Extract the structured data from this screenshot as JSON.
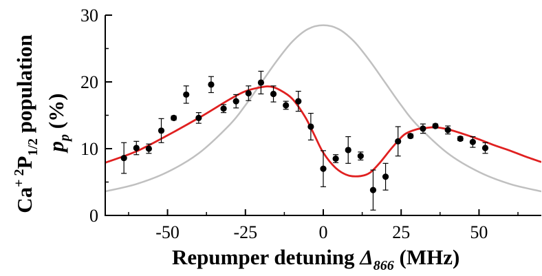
{
  "chart_data": {
    "type": "scatter",
    "xlabel": {
      "main": "Repumper detuning ",
      "symbol": "Δ",
      "subscript": "866",
      "unit": " (MHz)"
    },
    "ylabel": {
      "line1_prefix": "Ca",
      "line1_sup_plus": "+",
      "line1_sup_2": "2",
      "line1_main": "P",
      "line1_sub": "1/2",
      "line1_suffix": " population",
      "line2_symbol": "p",
      "line2_sub": "p",
      "line2_unit": " (%)"
    },
    "xlim": [
      -70,
      70
    ],
    "ylim": [
      0,
      30
    ],
    "xticks": [
      -50,
      -25,
      0,
      25,
      50
    ],
    "yticks": [
      0,
      10,
      20,
      30
    ],
    "tick_labels_x": [
      "-50",
      "-25",
      "0",
      "25",
      "50"
    ],
    "tick_labels_y": [
      "0",
      "10",
      "20",
      "30"
    ],
    "grid": false,
    "legend": "none",
    "series": [
      {
        "kind": "points",
        "color": "#000000",
        "x": [
          -64,
          -60,
          -56,
          -52,
          -48,
          -44,
          -40,
          -36,
          -32,
          -28,
          -24,
          -20,
          -16,
          -12,
          -8,
          -4,
          0,
          4,
          8,
          12,
          16,
          20,
          24,
          28,
          32,
          36,
          40,
          44,
          48,
          52
        ],
        "y": [
          8.6,
          10.1,
          10.0,
          12.7,
          14.6,
          18.1,
          14.6,
          19.6,
          16.0,
          17.1,
          18.3,
          19.9,
          18.2,
          16.5,
          17.1,
          13.3,
          7.0,
          8.5,
          9.8,
          8.9,
          3.8,
          5.8,
          11.1,
          11.9,
          13.0,
          13.4,
          12.8,
          11.5,
          11.0,
          10.1
        ],
        "yerr_low": [
          2.3,
          1.0,
          0.7,
          1.8,
          0.3,
          1.3,
          0.8,
          1.2,
          0.6,
          1.0,
          1.1,
          1.7,
          1.2,
          0.6,
          1.5,
          2.0,
          2.7,
          0.6,
          2.0,
          0.6,
          3.0,
          2.0,
          2.2,
          0.3,
          0.7,
          0.3,
          0.6,
          0.3,
          0.8,
          0.8
        ],
        "yerr_high": [
          2.3,
          1.0,
          0.7,
          1.8,
          0.3,
          1.3,
          0.8,
          1.2,
          0.6,
          1.0,
          1.1,
          1.7,
          1.2,
          0.6,
          1.5,
          2.0,
          2.7,
          0.6,
          2.0,
          0.6,
          3.0,
          2.0,
          2.2,
          0.3,
          0.7,
          0.3,
          0.6,
          0.3,
          0.8,
          0.8
        ]
      },
      {
        "kind": "line",
        "color": "#e02020",
        "x": [
          -70,
          -60,
          -50,
          -40,
          -30,
          -25,
          -20,
          -17,
          -14,
          -10,
          -6,
          -3,
          0,
          4,
          8,
          12,
          15,
          18,
          22,
          26,
          30,
          33,
          36,
          40,
          45,
          50,
          55,
          60,
          65,
          70
        ],
        "y": [
          7.9,
          9.6,
          12.0,
          14.6,
          17.4,
          18.6,
          19.2,
          19.3,
          18.8,
          17.5,
          14.9,
          12.2,
          9.4,
          7.1,
          6.0,
          5.9,
          6.4,
          7.8,
          10.1,
          12.1,
          12.9,
          13.1,
          13.2,
          12.9,
          12.2,
          11.4,
          10.5,
          9.7,
          8.8,
          8.0
        ]
      },
      {
        "kind": "line",
        "color": "#c0c0c0",
        "x": [
          -70,
          -60,
          -50,
          -40,
          -30,
          -25,
          -20,
          -15,
          -10,
          -5,
          0,
          5,
          10,
          15,
          20,
          25,
          30,
          40,
          50,
          60,
          70
        ],
        "y": [
          3.6,
          4.7,
          6.5,
          9.3,
          13.6,
          16.5,
          19.8,
          23.1,
          26.0,
          27.9,
          28.5,
          27.9,
          26.0,
          23.1,
          19.8,
          16.5,
          13.6,
          9.3,
          6.5,
          4.7,
          3.6
        ]
      }
    ]
  }
}
